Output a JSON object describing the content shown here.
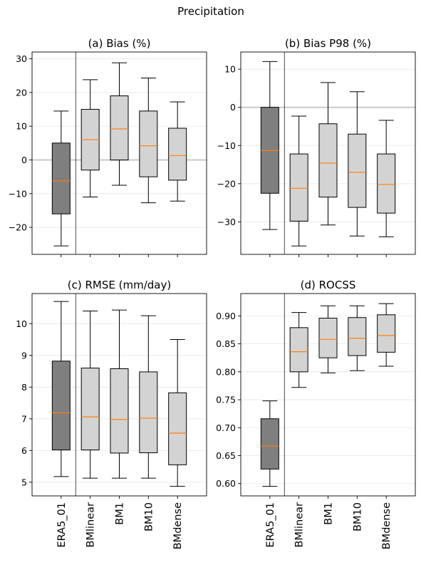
{
  "figure": {
    "title": "Precipitation"
  },
  "chart_data": [
    {
      "type": "box",
      "title": "(a) Bias (%)",
      "categories": [
        "ERA5_01",
        "BMlinear",
        "BM1",
        "BM10",
        "BMdense"
      ],
      "ylim": [
        -28,
        32
      ],
      "yticks": [
        -20,
        -10,
        0,
        10,
        20,
        30
      ],
      "reference_line": 0,
      "grid": "horizontal",
      "separator_after_category": 0,
      "colors": {
        "reference": "#7f7f7f",
        "model": "#d3d3d3",
        "median": "#ff7f0e",
        "reference_line": "#d3d3d3",
        "grid": "#e6e6e6"
      },
      "boxes": [
        {
          "whislo": -25.5,
          "q1": -16,
          "med": -6.2,
          "q3": 5,
          "whishi": 14.5
        },
        {
          "whislo": -11,
          "q1": -3,
          "med": 6,
          "q3": 15,
          "whishi": 23.8
        },
        {
          "whislo": -7.5,
          "q1": 0,
          "med": 9.2,
          "q3": 19,
          "whishi": 28.8
        },
        {
          "whislo": -12.7,
          "q1": -5,
          "med": 4.2,
          "q3": 14.5,
          "whishi": 24.3
        },
        {
          "whislo": -12.2,
          "q1": -6,
          "med": 1.3,
          "q3": 9.4,
          "whishi": 17.2
        }
      ]
    },
    {
      "type": "box",
      "title": "(b) Bias P98 (%)",
      "categories": [
        "ERA5_01",
        "BMlinear",
        "BM1",
        "BM10",
        "BMdense"
      ],
      "ylim": [
        -38.5,
        14.5
      ],
      "yticks": [
        -30,
        -20,
        -10,
        0,
        10
      ],
      "reference_line": 0,
      "grid": "horizontal",
      "separator_after_category": 0,
      "colors": {
        "reference": "#7f7f7f",
        "model": "#d3d3d3",
        "median": "#ff7f0e",
        "reference_line": "#d3d3d3",
        "grid": "#e6e6e6"
      },
      "boxes": [
        {
          "whislo": -32,
          "q1": -22.5,
          "med": -11.3,
          "q3": 0,
          "whishi": 12
        },
        {
          "whislo": -36.3,
          "q1": -29.8,
          "med": -21.2,
          "q3": -12.2,
          "whishi": -2.3
        },
        {
          "whislo": -30.8,
          "q1": -23.5,
          "med": -14.6,
          "q3": -4.3,
          "whishi": 6.5
        },
        {
          "whislo": -33.7,
          "q1": -26.2,
          "med": -17,
          "q3": -7,
          "whishi": 4.1
        },
        {
          "whislo": -33.9,
          "q1": -27.7,
          "med": -20.2,
          "q3": -12.2,
          "whishi": -3.4
        }
      ]
    },
    {
      "type": "box",
      "title": "(c) RMSE (mm/day)",
      "categories": [
        "ERA5_01",
        "BMlinear",
        "BM1",
        "BM10",
        "BMdense"
      ],
      "ylim": [
        4.57,
        10.95
      ],
      "yticks": [
        5,
        6,
        7,
        8,
        9,
        10
      ],
      "grid": "horizontal",
      "separator_after_category": 0,
      "colors": {
        "reference": "#7f7f7f",
        "model": "#d3d3d3",
        "median": "#ff7f0e",
        "grid": "#e6e6e6"
      },
      "boxes": [
        {
          "whislo": 5.18,
          "q1": 6.02,
          "med": 7.19,
          "q3": 8.82,
          "whishi": 10.7
        },
        {
          "whislo": 5.13,
          "q1": 6.02,
          "med": 7.06,
          "q3": 8.6,
          "whishi": 10.4
        },
        {
          "whislo": 5.13,
          "q1": 5.92,
          "med": 6.98,
          "q3": 8.58,
          "whishi": 10.43
        },
        {
          "whislo": 5.13,
          "q1": 5.93,
          "med": 7.02,
          "q3": 8.48,
          "whishi": 10.25
        },
        {
          "whislo": 4.87,
          "q1": 5.55,
          "med": 6.55,
          "q3": 7.82,
          "whishi": 9.5
        }
      ]
    },
    {
      "type": "box",
      "title": "(d) ROCSS",
      "categories": [
        "ERA5_01",
        "BMlinear",
        "BM1",
        "BM10",
        "BMdense"
      ],
      "ylim": [
        0.578,
        0.94
      ],
      "yticks": [
        0.6,
        0.65,
        0.7,
        0.75,
        0.8,
        0.85,
        0.9
      ],
      "ytick_labels": [
        "0.60",
        "0.65",
        "0.70",
        "0.75",
        "0.80",
        "0.85",
        "0.90"
      ],
      "grid": "horizontal",
      "separator_after_category": 0,
      "colors": {
        "reference": "#7f7f7f",
        "model": "#d3d3d3",
        "median": "#ff7f0e",
        "grid": "#e6e6e6"
      },
      "boxes": [
        {
          "whislo": 0.595,
          "q1": 0.626,
          "med": 0.667,
          "q3": 0.716,
          "whishi": 0.748
        },
        {
          "whislo": 0.772,
          "q1": 0.8,
          "med": 0.836,
          "q3": 0.879,
          "whishi": 0.906
        },
        {
          "whislo": 0.798,
          "q1": 0.825,
          "med": 0.858,
          "q3": 0.896,
          "whishi": 0.918
        },
        {
          "whislo": 0.802,
          "q1": 0.829,
          "med": 0.86,
          "q3": 0.897,
          "whishi": 0.918
        },
        {
          "whislo": 0.81,
          "q1": 0.835,
          "med": 0.865,
          "q3": 0.902,
          "whishi": 0.922
        }
      ]
    }
  ]
}
